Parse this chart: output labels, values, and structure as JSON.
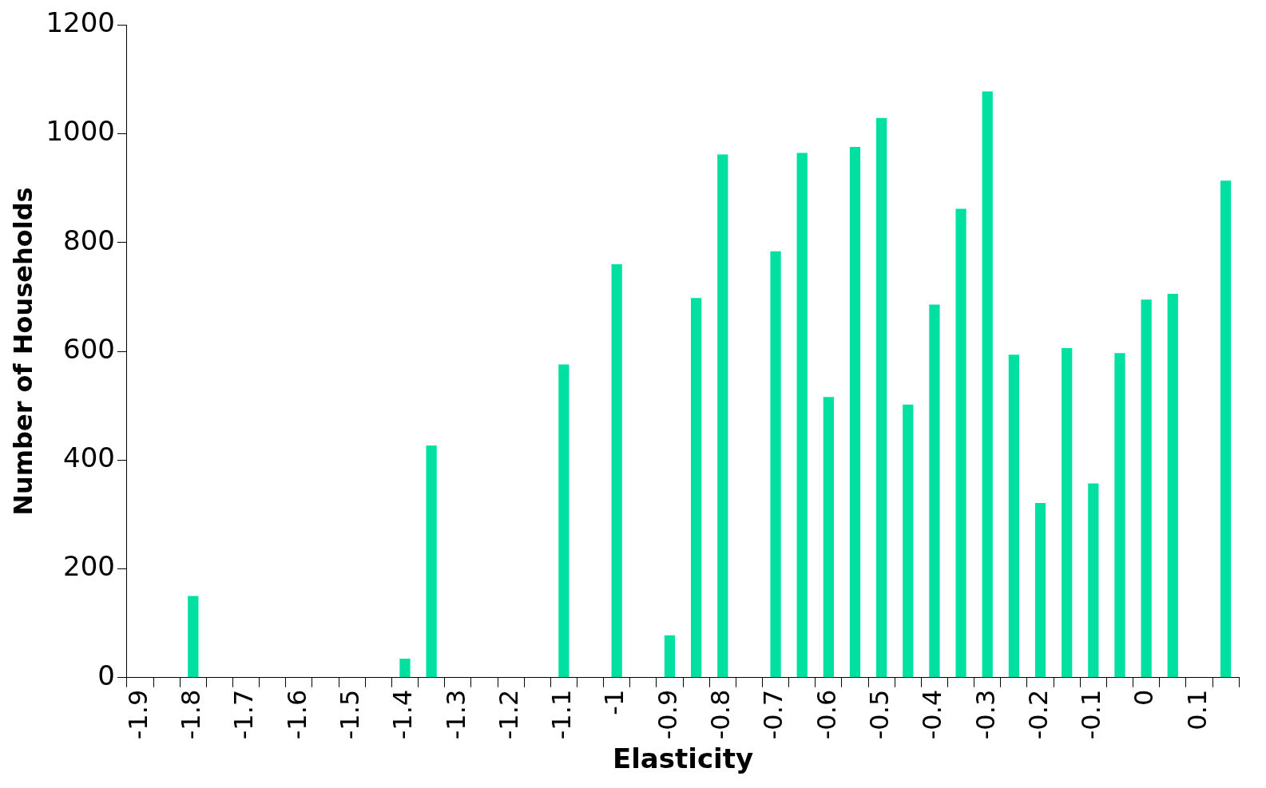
{
  "chart_data": {
    "type": "bar",
    "xlabel": "Elasticity",
    "ylabel": "Number of Households",
    "categories": [
      "-1.9",
      null,
      "-1.8",
      null,
      "-1.7",
      null,
      "-1.6",
      null,
      "-1.5",
      null,
      "-1.4",
      null,
      "-1.3",
      null,
      "-1.2",
      null,
      "-1.1",
      null,
      "-1",
      null,
      "-0.9",
      null,
      "-0.8",
      null,
      "-0.7",
      null,
      "-0.6",
      null,
      "-0.5",
      null,
      "-0.4",
      null,
      "-0.3",
      null,
      "-0.2",
      null,
      "-0.1",
      null,
      "0",
      null,
      "0.1",
      null
    ],
    "values": [
      0,
      0,
      150,
      0,
      0,
      0,
      0,
      0,
      0,
      0,
      35,
      427,
      0,
      0,
      0,
      0,
      576,
      0,
      760,
      0,
      78,
      698,
      962,
      0,
      784,
      965,
      516,
      976,
      1029,
      502,
      686,
      862,
      1078,
      594,
      321,
      606,
      357,
      597,
      695,
      706,
      0,
      914
    ],
    "color": "#00e0a0",
    "ylim": [
      0,
      1200
    ],
    "yticks": [
      0,
      200,
      400,
      600,
      800,
      1000,
      1200
    ],
    "grid": false,
    "legend": false
  }
}
